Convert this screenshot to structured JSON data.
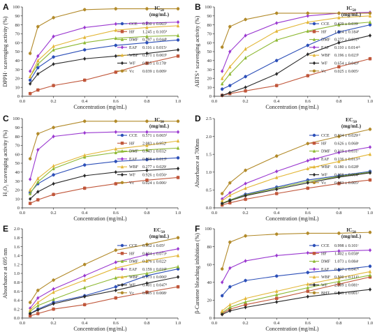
{
  "panels": [
    {
      "letter": "A",
      "ylabel": "DPPH· scavenging activity (%)",
      "xlabel": "Concentration (mg/mL)",
      "ylim": [
        0,
        100
      ],
      "yticks": [
        0,
        10,
        20,
        30,
        40,
        50,
        60,
        70,
        80,
        90,
        100
      ],
      "xticks": [
        "0.0",
        "0.2",
        "0.4",
        "0.6",
        "0.8",
        "1.0"
      ],
      "header": "IC",
      "header_sub": "50",
      "header_unit": "(mg/mL)",
      "legend_values": [
        "0.230 ± 0.065ᵇ",
        "1.245 ± 0.105ᵈ",
        "0.297 ± 0.044ᵇ",
        "0.116 ± 0.015ᵃ",
        "0.271 ± 0.003ᵇ",
        "0.965 ± 0.178ᶜ",
        "0.039 ± 0.009ᵃ"
      ],
      "chart_data": {
        "type": "line",
        "x": [
          0.05,
          0.1,
          0.2,
          0.4,
          0.6,
          0.8,
          1.0
        ],
        "series": [
          {
            "name": "CCE",
            "values": [
              18,
              32,
              44,
              52,
              57,
              60,
              63
            ]
          },
          {
            "name": "HF",
            "values": [
              3,
              7,
              12,
              18,
              27,
              37,
              45
            ]
          },
          {
            "name": "DMF",
            "values": [
              22,
              36,
              52,
              60,
              65,
              67,
              68
            ]
          },
          {
            "name": "EAF",
            "values": [
              28,
              45,
              67,
              77,
              81,
              82,
              83
            ]
          },
          {
            "name": "WBF",
            "values": [
              22,
              40,
              56,
              66,
              74,
              77,
              79
            ]
          },
          {
            "name": "WF",
            "values": [
              14,
              25,
              36,
              42,
              45,
              48,
              52
            ]
          },
          {
            "name": "Vc",
            "values": [
              48,
              78,
              88,
              97,
              98,
              98,
              98
            ]
          }
        ]
      }
    },
    {
      "letter": "B",
      "ylabel": "ABTS⁺ scavenging activity (%)",
      "xlabel": "Concentration (mg/mL)",
      "ylim": [
        0,
        100
      ],
      "yticks": [
        0,
        10,
        20,
        30,
        40,
        50,
        60,
        70,
        80,
        90,
        100
      ],
      "xticks": [
        "0.0",
        "0.2",
        "0.4",
        "0.6",
        "0.8",
        "1.0"
      ],
      "header": "IC",
      "header_sub": "50",
      "header_unit": "(mg/mL)",
      "legend_values": [
        "0.429 ± 0.039ᶜ",
        "1.314 ± 0.184ᵈ",
        "0.277 ± 0.031ᵇ",
        "0.110 ± 0.014ᵃᵇ",
        "0.196 ± 0.023ᵇ",
        "0.654 ± 0.043ᵈ",
        "0.025 ± 0.005ᵃ"
      ],
      "chart_data": {
        "type": "line",
        "x": [
          0.05,
          0.1,
          0.2,
          0.4,
          0.6,
          0.8,
          1.0
        ],
        "series": [
          {
            "name": "CCE",
            "values": [
              8,
              12,
              22,
              40,
              57,
              72,
              80
            ]
          },
          {
            "name": "HF",
            "values": [
              1,
              3,
              6,
              12,
              23,
              33,
              42
            ]
          },
          {
            "name": "DMF",
            "values": [
              14,
              25,
              43,
              63,
              73,
              80,
              83
            ]
          },
          {
            "name": "EAF",
            "values": [
              28,
              50,
              68,
              82,
              90,
              93,
              94
            ]
          },
          {
            "name": "WBF",
            "values": [
              20,
              33,
              53,
              73,
              83,
              88,
              90
            ]
          },
          {
            "name": "WF",
            "values": [
              1,
              4,
              10,
              25,
              47,
              60,
              68
            ]
          },
          {
            "name": "Vc",
            "values": [
              55,
              78,
              86,
              93,
              93,
              93,
              93
            ]
          }
        ]
      }
    },
    {
      "letter": "C",
      "ylabel": "H₂O₂ scavenging activity (%)",
      "xlabel": "Concentration (mg/mL)",
      "ylim": [
        0,
        100
      ],
      "yticks": [
        0,
        10,
        20,
        30,
        40,
        50,
        60,
        70,
        80,
        90,
        100
      ],
      "xticks": [
        "0.0",
        "0.2",
        "0.4",
        "0.6",
        "0.8",
        "1.0"
      ],
      "header": "IC",
      "header_sub": "50",
      "header_unit": "(mg/mL)",
      "legend_values": [
        "0.571 ± 0.065ᵈ",
        "2.083 ± 0.952ᶠ",
        "0.343 ± 0.032ᶜ",
        "0.098 ± 0.013ᵇ",
        "0.277 ± 0.029ᶜ",
        "0.926 ± 0.056ᵉ",
        "0.024 ± 0.006ᵃ"
      ],
      "chart_data": {
        "type": "line",
        "x": [
          0.05,
          0.1,
          0.2,
          0.4,
          0.6,
          0.8,
          1.0
        ],
        "series": [
          {
            "name": "CCE",
            "values": [
              17,
              27,
              37,
              48,
              52,
              54,
              56
            ]
          },
          {
            "name": "HF",
            "values": [
              5,
              9,
              15,
              22,
              27,
              31,
              34
            ]
          },
          {
            "name": "DMF",
            "values": [
              16,
              29,
              44,
              57,
              62,
              65,
              67
            ]
          },
          {
            "name": "EAF",
            "values": [
              32,
              65,
              80,
              84,
              85,
              85,
              85
            ]
          },
          {
            "name": "WBF",
            "values": [
              20,
              33,
              47,
              59,
              66,
              70,
              75
            ]
          },
          {
            "name": "WF",
            "values": [
              10,
              18,
              27,
              36,
              40,
              42,
              44
            ]
          },
          {
            "name": "Vc",
            "values": [
              55,
              83,
              90,
              97,
              97,
              97,
              97
            ]
          }
        ]
      }
    },
    {
      "letter": "D",
      "ylabel": "Absorbance at 700nm",
      "xlabel": "Concentration (mg/mL)",
      "ylim": [
        0,
        2.5
      ],
      "yticks": [
        0.0,
        0.5,
        1.0,
        1.5,
        2.0,
        2.5
      ],
      "xticks": [
        "0.0",
        "0.2",
        "0.4",
        "0.6",
        "0.8",
        "1.0"
      ],
      "header": "EC",
      "header_sub": "50",
      "header_unit": "(mg/mL)",
      "legend_values": [
        "0.334 ± 0.029ᶜᵈ",
        "0.626 ± 0.068ᵉ",
        "0.319 ± 0.031ᶜ",
        "0.136 ± 0.013ᵃᵇ",
        "0.180 ± 0.028ᵇ",
        "0.398 ± 0.064ᵈ",
        "0.083 ± 0.005ᵃ"
      ],
      "chart_data": {
        "type": "line",
        "x": [
          0.05,
          0.1,
          0.2,
          0.4,
          0.6,
          0.8,
          1.0
        ],
        "series": [
          {
            "name": "CCE",
            "values": [
              0.12,
              0.22,
              0.38,
              0.58,
              0.78,
              0.9,
              1.02
            ]
          },
          {
            "name": "HF",
            "values": [
              0.08,
              0.14,
              0.24,
              0.4,
              0.55,
              0.68,
              0.78
            ]
          },
          {
            "name": "DMF",
            "values": [
              0.13,
              0.22,
              0.36,
              0.55,
              0.74,
              0.88,
              1.0
            ]
          },
          {
            "name": "EAF",
            "values": [
              0.25,
              0.42,
              0.68,
              1.02,
              1.32,
              1.55,
              1.7
            ]
          },
          {
            "name": "WBF",
            "values": [
              0.2,
              0.35,
              0.55,
              0.85,
              1.1,
              1.3,
              1.5
            ]
          },
          {
            "name": "WF",
            "values": [
              0.12,
              0.2,
              0.34,
              0.52,
              0.7,
              0.86,
              0.98
            ]
          },
          {
            "name": "Vc",
            "values": [
              0.4,
              0.7,
              1.05,
              1.45,
              1.8,
              2.0,
              2.2
            ]
          }
        ]
      }
    },
    {
      "letter": "E",
      "ylabel": "Absorbance at 695 nm",
      "xlabel": "Concentration (mg/mL)",
      "ylim": [
        0,
        2.0
      ],
      "yticks": [
        0.0,
        0.2,
        0.4,
        0.6,
        0.8,
        1.0,
        1.2,
        1.4,
        1.6,
        1.8,
        2.0
      ],
      "xticks": [
        "0.0",
        "0.2",
        "0.4",
        "0.6",
        "0.8",
        "1.0"
      ],
      "header": "EC",
      "header_sub": "50",
      "header_unit": "(mg/mL)",
      "legend_values": [
        "0.352 ± 0.05ᵈ",
        "0.604 ± 0.073ᵉ",
        "0.276 ± 0.022ᶜ",
        "0.159 ± 0.019ᵇ",
        "0.173 ± 0.006ᵇ",
        "0.401 ± 0.047ᵈ",
        "0.095 ± 0.008ᵃ"
      ],
      "chart_data": {
        "type": "line",
        "x": [
          0.05,
          0.1,
          0.2,
          0.4,
          0.6,
          0.8,
          1.0
        ],
        "series": [
          {
            "name": "CCE",
            "values": [
              0.1,
              0.2,
              0.35,
              0.5,
              0.7,
              0.95,
              1.1
            ]
          },
          {
            "name": "HF",
            "values": [
              0.05,
              0.1,
              0.2,
              0.3,
              0.45,
              0.58,
              0.7
            ]
          },
          {
            "name": "DMF",
            "values": [
              0.15,
              0.28,
              0.42,
              0.68,
              0.9,
              1.0,
              1.15
            ]
          },
          {
            "name": "EAF",
            "values": [
              0.22,
              0.45,
              0.65,
              0.95,
              1.25,
              1.42,
              1.55
            ]
          },
          {
            "name": "WBF",
            "values": [
              0.18,
              0.35,
              0.58,
              0.85,
              1.12,
              1.28,
              1.4
            ]
          },
          {
            "name": "WF",
            "values": [
              0.1,
              0.18,
              0.32,
              0.48,
              0.62,
              0.78,
              0.92
            ]
          },
          {
            "name": "Vc",
            "values": [
              0.35,
              0.62,
              0.85,
              1.2,
              1.52,
              1.65,
              1.8
            ]
          }
        ]
      }
    },
    {
      "letter": "F",
      "ylabel": "β-Carotene bleaching inhibition (%)",
      "xlabel": "Concentration (mg/mL)",
      "ylim": [
        0,
        100
      ],
      "yticks": [
        0,
        20,
        40,
        60,
        80,
        100
      ],
      "xticks": [
        "0.0",
        "0.2",
        "0.4",
        "0.6",
        "0.8",
        "1.0"
      ],
      "header": "IC",
      "header_sub": "50",
      "header_unit": "(mg/mL)",
      "legend_values": [
        "0.998 ± 0.101ᶜ",
        "1.402 ± 0.058ᵈ",
        "1.073 ± 0.084ᶜ",
        "0.127 ± 0.047ᵇ",
        "0.500 ± 0.111ᵇ",
        "2.209 ± 0.081ᵉ",
        "0.049 ± 0.001ᵃ"
      ],
      "chart_data": {
        "type": "line",
        "x": [
          0.05,
          0.1,
          0.2,
          0.4,
          0.6,
          0.8,
          1.0
        ],
        "series": [
          {
            "name": "CCE",
            "values": [
              25,
              35,
              42,
              47,
              51,
              54,
              58
            ]
          },
          {
            "name": "HF",
            "values": [
              5,
              10,
              15,
              22,
              30,
              38,
              46
            ]
          },
          {
            "name": "DMF",
            "values": [
              6,
              12,
              18,
              26,
              34,
              41,
              48
            ]
          },
          {
            "name": "EAF",
            "values": [
              40,
              56,
              64,
              70,
              73,
              75,
              76
            ]
          },
          {
            "name": "WBF",
            "values": [
              8,
              15,
              22,
              30,
              38,
              45,
              52
            ]
          },
          {
            "name": "WF",
            "values": [
              4,
              8,
              12,
              18,
              24,
              28,
              32
            ]
          },
          {
            "name": "BHT",
            "values": [
              55,
              85,
              92,
              94,
              95,
              95,
              96
            ]
          }
        ]
      }
    }
  ],
  "colors": [
    "#2c4fb8",
    "#c0563a",
    "#8db832",
    "#9a38d0",
    "#e2b636",
    "#2a2a2a",
    "#b28a2a"
  ]
}
